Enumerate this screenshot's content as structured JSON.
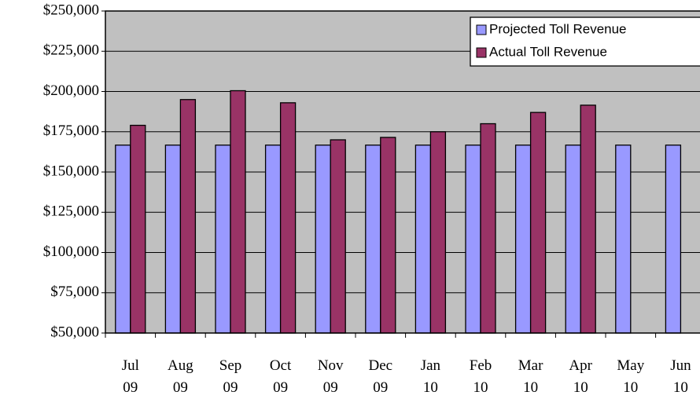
{
  "chart_data": {
    "type": "bar",
    "categories": [
      "Jul 09",
      "Aug 09",
      "Sep 09",
      "Oct 09",
      "Nov 09",
      "Dec 09",
      "Jan 10",
      "Feb 10",
      "Mar 10",
      "Apr 10",
      "May 10",
      "Jun 10"
    ],
    "series": [
      {
        "name": "Projected Toll Revenue",
        "color": "#9999ff",
        "values": [
          166700,
          166700,
          166700,
          166700,
          166700,
          166700,
          166700,
          166700,
          166700,
          166700,
          166700,
          166700
        ]
      },
      {
        "name": "Actual Toll Revenue",
        "color": "#993366",
        "values": [
          179000,
          195000,
          200500,
          193000,
          170000,
          171500,
          175000,
          180000,
          187000,
          191500,
          null,
          null
        ]
      }
    ],
    "ylim": [
      50000,
      250000
    ],
    "yticks": [
      {
        "value": 50000,
        "label": "$50,000"
      },
      {
        "value": 75000,
        "label": "$75,000"
      },
      {
        "value": 100000,
        "label": "$100,000"
      },
      {
        "value": 125000,
        "label": "$125,000"
      },
      {
        "value": 150000,
        "label": "$150,000"
      },
      {
        "value": 175000,
        "label": "$175,000"
      },
      {
        "value": 200000,
        "label": "$200,000"
      },
      {
        "value": 225000,
        "label": "$225,000"
      },
      {
        "value": 250000,
        "label": "$250,000"
      }
    ],
    "grid": true,
    "legend": "top-right",
    "plot_background": "#c0c0c0"
  }
}
